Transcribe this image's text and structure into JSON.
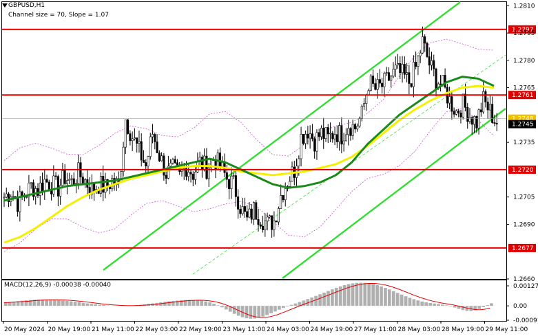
{
  "header": {
    "symbol": "GBPUSD,H1",
    "channel_info": "Channel size = 70, Slope = 1.07"
  },
  "macd": {
    "label": "MACD(12,26,9) -0.00038 -0.00040",
    "scale": [
      {
        "value": 0.00127,
        "label": "0.00127"
      },
      {
        "value": 0.0,
        "label": "0.00"
      },
      {
        "value": -0.00091,
        "label": "-0.00091"
      }
    ]
  },
  "price_scale": [
    {
      "value": 1.281,
      "label": "1.2810"
    },
    {
      "value": 1.2795,
      "label": "1.2795"
    },
    {
      "value": 1.278,
      "label": "1.2780"
    },
    {
      "value": 1.2765,
      "label": "1.2765"
    },
    {
      "value": 1.2735,
      "label": "1.2735"
    },
    {
      "value": 1.2705,
      "label": "1.2705"
    },
    {
      "value": 1.269,
      "label": "1.2690"
    },
    {
      "value": 1.266,
      "label": "1.2660"
    }
  ],
  "levels": [
    {
      "value": 1.2797,
      "label": "1.2797",
      "color": "#e00000"
    },
    {
      "value": 1.2761,
      "label": "1.2761",
      "color": "#e00000"
    },
    {
      "value": 1.272,
      "label": "1.2720",
      "color": "#e00000"
    },
    {
      "value": 1.2677,
      "label": "1.2677",
      "color": "#e00000"
    }
  ],
  "current_price": {
    "value": 1.2745,
    "label": "1.2745"
  },
  "bid_marker": {
    "value": 1.2748,
    "label": "1.2748",
    "color": "#f0c000"
  },
  "time_labels": [
    "20 May 2024",
    "20 May 19:00",
    "21 May 11:00",
    "22 May 03:00",
    "22 May 19:00",
    "23 May 11:00",
    "24 May 03:00",
    "24 May 19:00",
    "27 May 11:00",
    "28 May 03:00",
    "28 May 19:00",
    "29 May 11:00"
  ],
  "colors": {
    "channel": "#33dd33",
    "ma_fast": "#1a8a1a",
    "ma_slow": "#f5f000",
    "bollinger": "#cc55cc",
    "macd_hist": "#b0b0b0",
    "macd_signal": "#e00000",
    "level": "#e00000"
  },
  "chart_data": {
    "type": "candlestick",
    "symbol": "GBPUSD",
    "timeframe": "H1",
    "x_range": [
      "20 May 2024",
      "29 May 11:00"
    ],
    "y_range": [
      1.266,
      1.2812
    ],
    "close_path": [
      1.2705,
      1.2708,
      1.2702,
      1.2706,
      1.2711,
      1.2709,
      1.2714,
      1.2712,
      1.271,
      1.2716,
      1.2713,
      1.2718,
      1.2714,
      1.2709,
      1.2712,
      1.271,
      1.2714,
      1.2711,
      1.2748,
      1.2738,
      1.273,
      1.2722,
      1.274,
      1.2728,
      1.2718,
      1.272,
      1.2716,
      1.2722,
      1.2718,
      1.2724,
      1.2721,
      1.2726,
      1.2722,
      1.2715,
      1.2712,
      1.27,
      1.2692,
      1.2698,
      1.2694,
      1.269,
      1.2692,
      1.2706,
      1.2714,
      1.272,
      1.2738,
      1.2742,
      1.2736,
      1.274,
      1.2737,
      1.2741,
      1.2739,
      1.2745,
      1.2743,
      1.275,
      1.2768,
      1.2764,
      1.2766,
      1.277,
      1.2774,
      1.2772,
      1.2768,
      1.2776,
      1.279,
      1.2778,
      1.277,
      1.2766,
      1.2758,
      1.2752,
      1.2756,
      1.275,
      1.2746,
      1.2758,
      1.2752,
      1.2745
    ],
    "ma_fast": [
      1.2703,
      1.2705,
      1.2707,
      1.2709,
      1.2711,
      1.2712,
      1.2713,
      1.2714,
      1.2716,
      1.2718,
      1.272,
      1.2722,
      1.2724,
      1.2726,
      1.2724,
      1.272,
      1.2716,
      1.2712,
      1.271,
      1.2711,
      1.2713,
      1.2717,
      1.2724,
      1.2734,
      1.2742,
      1.275,
      1.2756,
      1.2762,
      1.2768,
      1.2771,
      1.277,
      1.2766
    ],
    "ma_slow": [
      1.268,
      1.2683,
      1.2688,
      1.2694,
      1.27,
      1.2705,
      1.2709,
      1.2712,
      1.2715,
      1.2717,
      1.2719,
      1.2721,
      1.2722,
      1.2722,
      1.2721,
      1.2719,
      1.2718,
      1.2717,
      1.2718,
      1.2719,
      1.2721,
      1.2723,
      1.2727,
      1.2733,
      1.274,
      1.2747,
      1.2753,
      1.2758,
      1.2762,
      1.2765,
      1.2766,
      1.2765
    ],
    "channel": {
      "slope": 1.07,
      "size": 70
    },
    "macd": {
      "value": -0.00038,
      "signal": -0.0004,
      "params": [
        12,
        26,
        9
      ]
    }
  }
}
